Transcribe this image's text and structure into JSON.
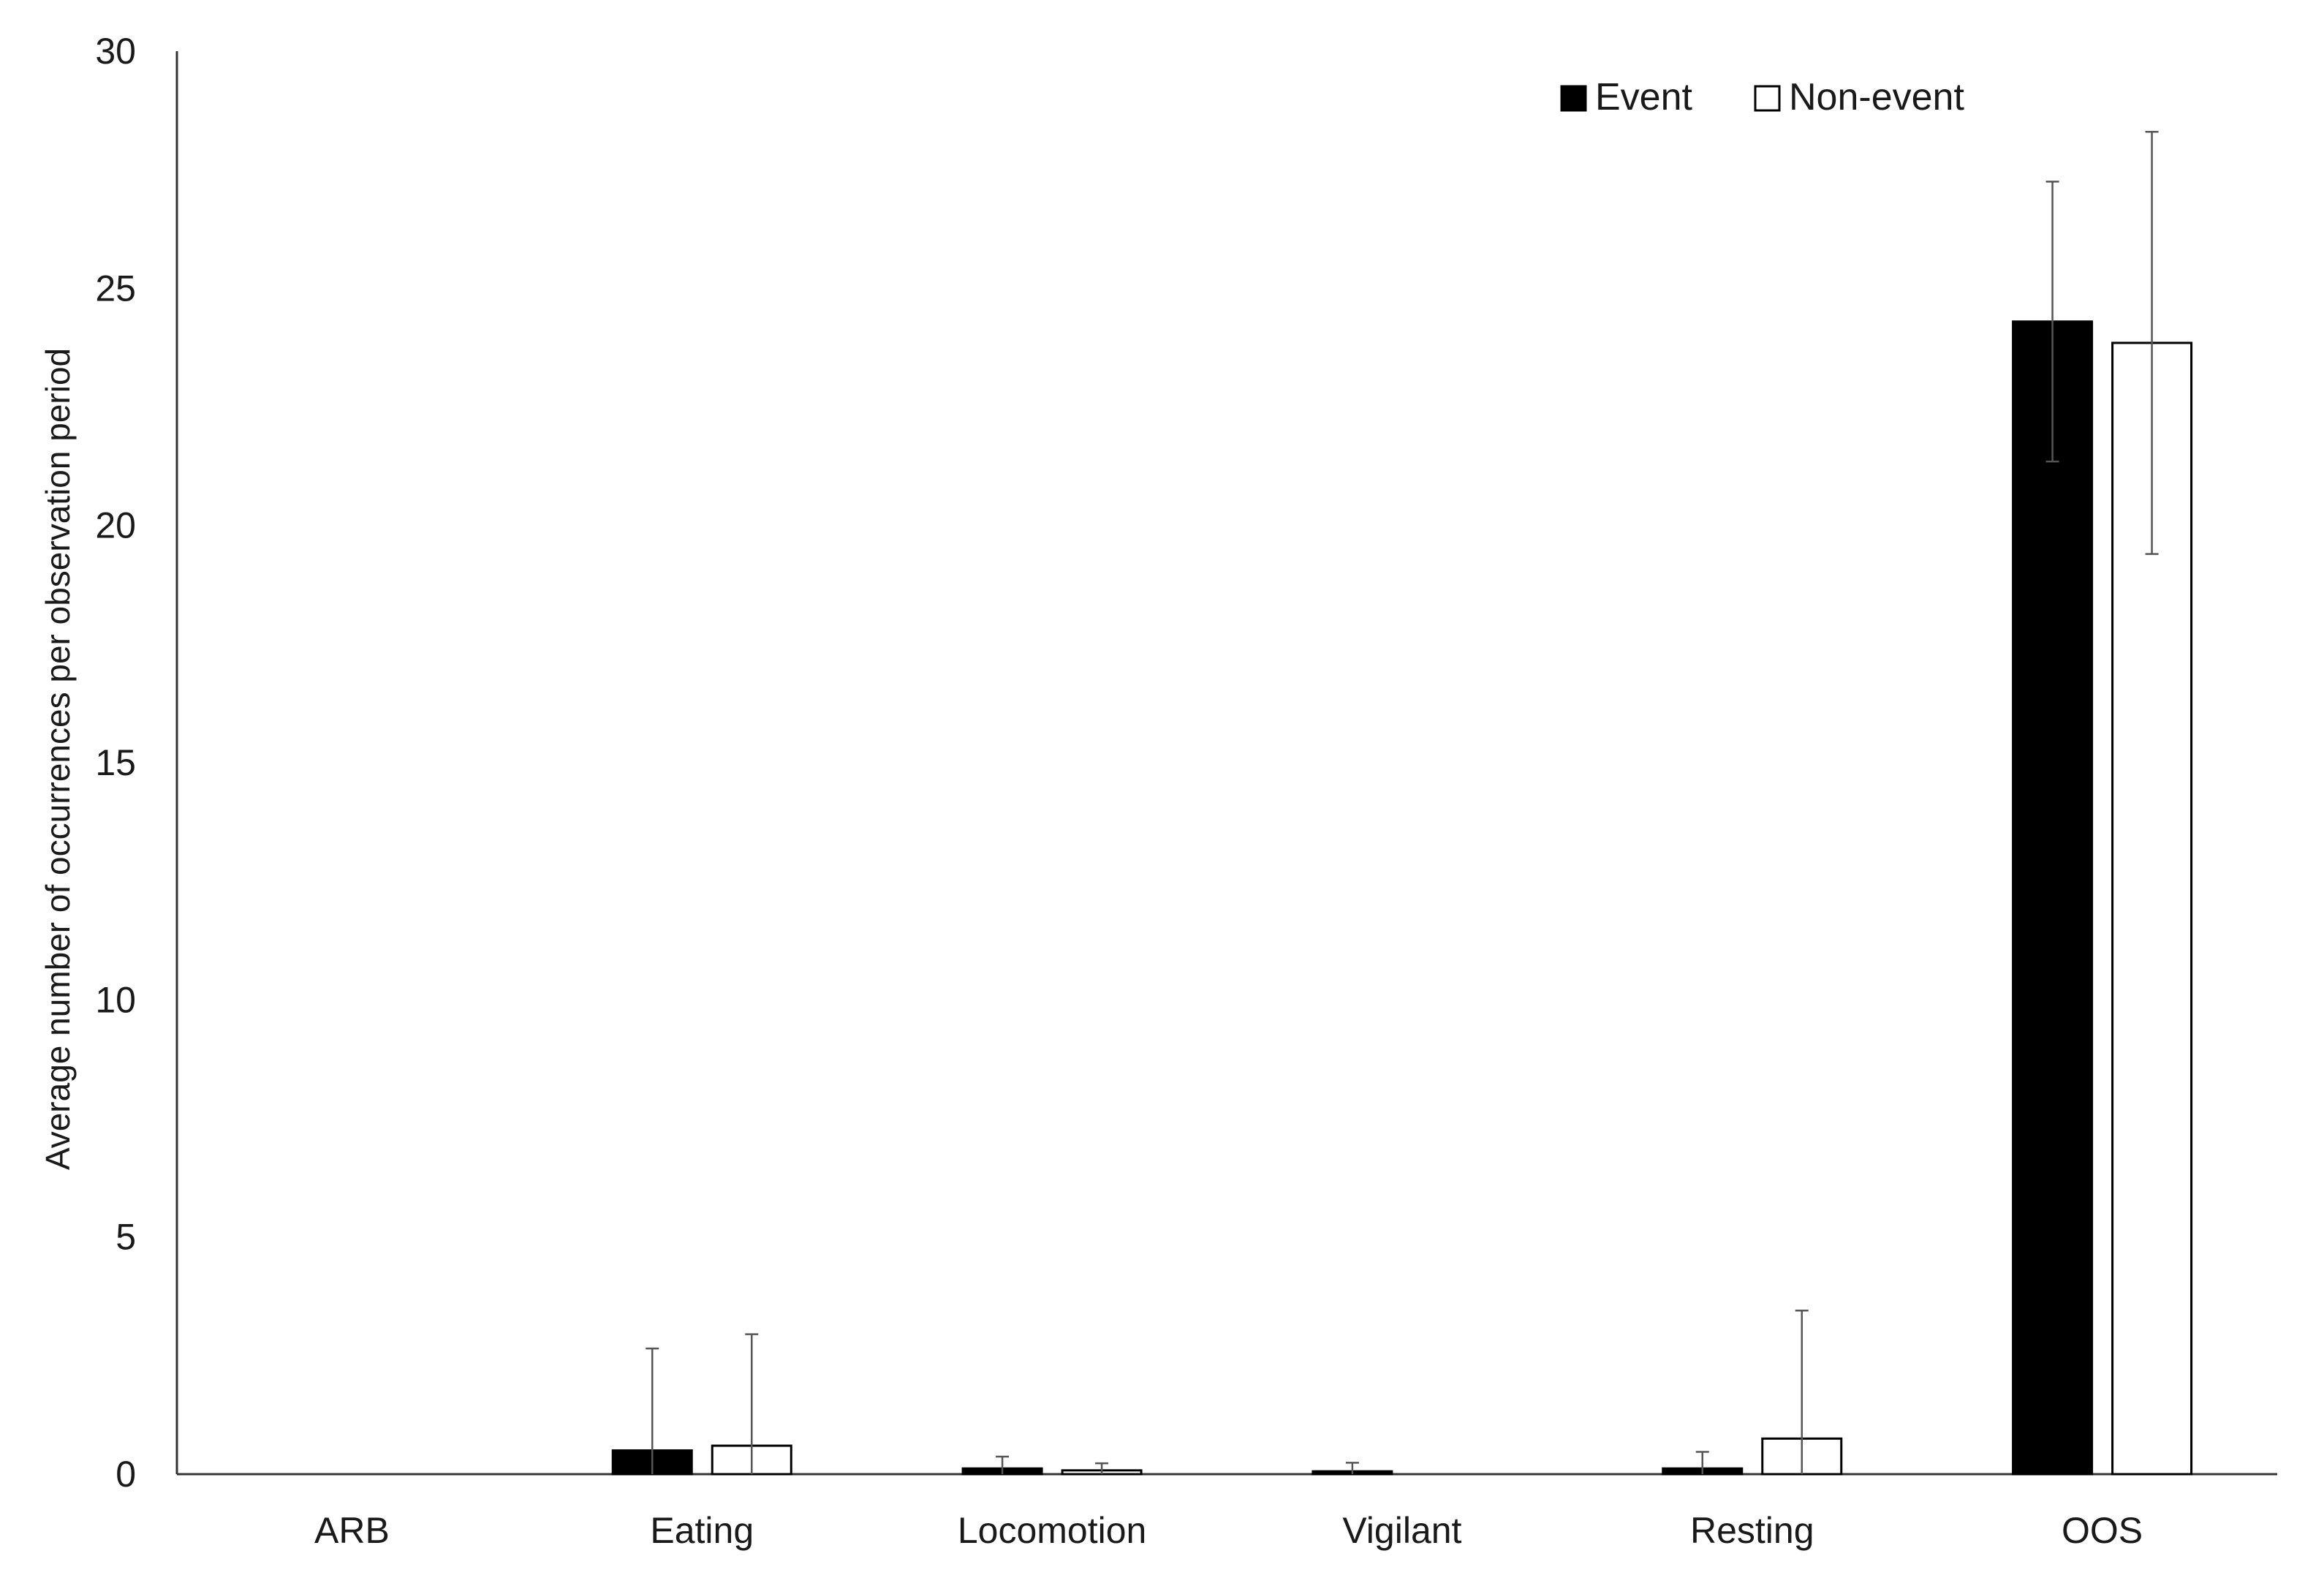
{
  "chart_data": {
    "type": "bar",
    "categories": [
      "ARB",
      "Eating",
      "Locomotion",
      "Vigilant",
      "Resting",
      "OOS"
    ],
    "series": [
      {
        "name": "Event",
        "color": "#000000",
        "values": [
          0,
          0.5,
          0.12,
          0.06,
          0.12,
          24.3
        ],
        "error": [
          0,
          2.15,
          0.25,
          0.18,
          0.35,
          2.95
        ]
      },
      {
        "name": "Non-event",
        "color": "#ffffff",
        "values": [
          0,
          0.6,
          0.08,
          0,
          0.75,
          23.85
        ],
        "error": [
          0,
          2.35,
          0.15,
          0,
          2.7,
          4.45
        ]
      }
    ],
    "ylabel": "Average number of occurrences per observation period",
    "xlabel": "",
    "ylim": [
      0,
      30
    ],
    "yticks": [
      0,
      5,
      10,
      15,
      20,
      25,
      30
    ],
    "grid": false,
    "legend": "top-right",
    "error_bars": true
  }
}
